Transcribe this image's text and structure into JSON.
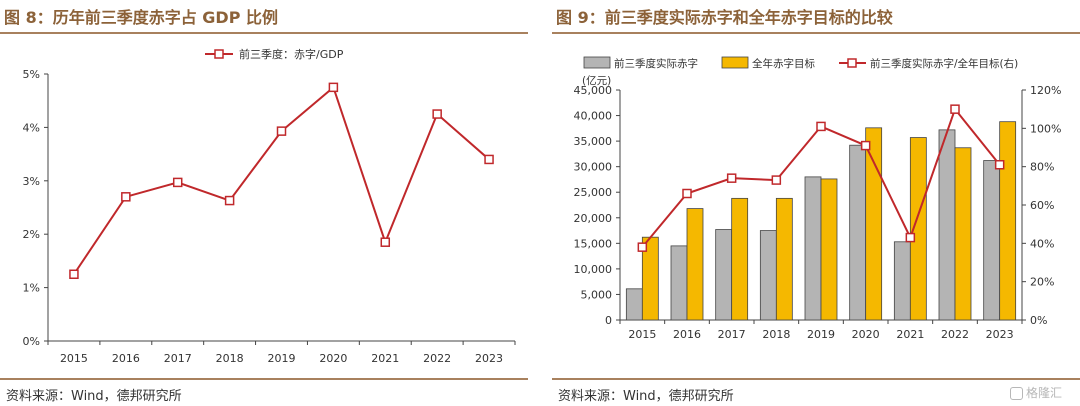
{
  "left": {
    "title": "图 8：历年前三季度赤字占 GDP 比例",
    "source": "资料来源：Wind，德邦研究所"
  },
  "right": {
    "title": "图 9：前三季度实际赤字和全年赤字目标的比较",
    "source": "资料来源：Wind，德邦研究所"
  },
  "watermark": {
    "text": "格隆汇",
    "icon": "logo-icon"
  },
  "chart_data": [
    {
      "type": "line",
      "title": "",
      "x": [
        "2015",
        "2016",
        "2017",
        "2018",
        "2019",
        "2020",
        "2021",
        "2022",
        "2023"
      ],
      "series": [
        {
          "name": "前三季度：赤字/GDP",
          "values": [
            1.25,
            2.7,
            2.97,
            2.63,
            3.93,
            4.75,
            1.85,
            4.25,
            3.4
          ],
          "color": "#c0282b"
        }
      ],
      "ylim": [
        0,
        5
      ],
      "yticks": [
        "0%",
        "1%",
        "2%",
        "3%",
        "4%",
        "5%"
      ],
      "legend": "top-center",
      "grid": false
    },
    {
      "type": "bar",
      "title": "",
      "unit": "(亿元)",
      "categories": [
        "2015",
        "2016",
        "2017",
        "2018",
        "2019",
        "2020",
        "2021",
        "2022",
        "2023"
      ],
      "series": [
        {
          "name": "前三季度实际赤字",
          "kind": "bar",
          "axis": "left",
          "color": "#b4b4b4",
          "values": [
            6100,
            14500,
            17700,
            17500,
            28000,
            34200,
            15300,
            37200,
            31200
          ]
        },
        {
          "name": "全年赤字目标",
          "kind": "bar",
          "axis": "left",
          "color": "#f5b800",
          "values": [
            16200,
            21800,
            23800,
            23800,
            27600,
            37600,
            35700,
            33700,
            38800
          ]
        },
        {
          "name": "前三季度实际赤字/全年目标(右)",
          "kind": "line",
          "axis": "right",
          "color": "#c0282b",
          "values": [
            38,
            66,
            74,
            73,
            101,
            91,
            43,
            110,
            81
          ]
        }
      ],
      "ylim": [
        0,
        45000
      ],
      "yticks": [
        "0",
        "5,000",
        "10,000",
        "15,000",
        "20,000",
        "25,000",
        "30,000",
        "35,000",
        "40,000",
        "45,000"
      ],
      "y2lim": [
        0,
        120
      ],
      "y2ticks": [
        "0%",
        "20%",
        "40%",
        "60%",
        "80%",
        "100%",
        "120%"
      ],
      "legend": "top",
      "grid": false
    }
  ]
}
